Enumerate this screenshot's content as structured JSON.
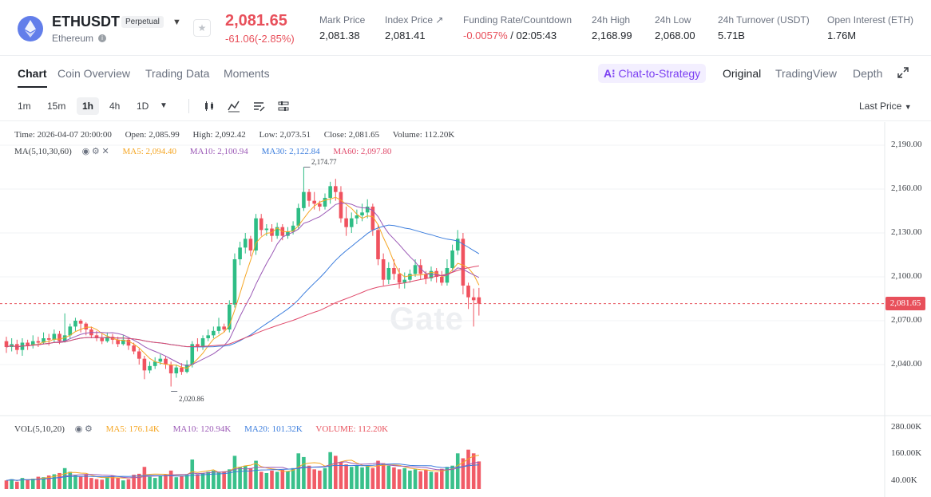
{
  "header": {
    "symbol": "ETHUSDT",
    "badge": "Perpetual",
    "coin_name": "Ethereum",
    "last_price": "2,081.65",
    "change": "-61.06(-2.85%)",
    "stats": [
      {
        "label": "Mark Price",
        "value": "2,081.38"
      },
      {
        "label": "Index Price ↗",
        "value": "2,081.41"
      },
      {
        "label": "Funding Rate/Countdown",
        "value_neg": "-0.0057%",
        "value": " / 02:05:43"
      },
      {
        "label": "24h High",
        "value": "2,168.99"
      },
      {
        "label": "24h Low",
        "value": "2,068.00"
      },
      {
        "label": "24h Turnover (USDT)",
        "value": "5.71B"
      },
      {
        "label": "Open Interest (ETH)",
        "value": "1.76M"
      }
    ]
  },
  "tabs": [
    "Chart",
    "Coin Overview",
    "Trading Data",
    "Moments"
  ],
  "strategy_label": "Chat-to-Strategy",
  "view_tabs": [
    "Original",
    "TradingView",
    "Depth"
  ],
  "intervals": [
    "1m",
    "15m",
    "1h",
    "4h",
    "1D"
  ],
  "price_source": "Last Price",
  "ohlc": {
    "time": "Time: 2026-04-07 20:00:00",
    "open": "Open: 2,085.99",
    "high": "High: 2,092.42",
    "low": "Low: 2,073.51",
    "close": "Close: 2,081.65",
    "volume": "Volume: 112.20K"
  },
  "ma_legend": {
    "title": "MA(5,10,30,60)",
    "ma5": "MA5: 2,094.40",
    "ma10": "MA10: 2,100.94",
    "ma30": "MA30: 2,122.84",
    "ma60": "MA60: 2,097.80"
  },
  "vol_legend": {
    "title": "VOL(5,10,20)",
    "ma5": "MA5: 176.14K",
    "ma10": "MA10: 120.94K",
    "ma20": "MA20: 101.32K",
    "volume": "VOLUME: 112.20K"
  },
  "annotations": {
    "high": "2,174.77",
    "low": "2,020.86"
  },
  "price_axis": [
    "2,190.00",
    "2,160.00",
    "2,130.00",
    "2,100.00",
    "2,070.00",
    "2,040.00"
  ],
  "vol_axis": [
    "280.00K",
    "160.00K",
    "40.00K"
  ],
  "current_price_tag": "2,081.65",
  "watermark": "Gate",
  "colors": {
    "up": "#2ebd85",
    "down": "#f0525f",
    "ma5": "#f5a623",
    "ma10": "#9b59b6",
    "ma30": "#3b7ddd",
    "ma60": "#e04a6b"
  },
  "chart_data": {
    "type": "candlestick",
    "ylim": [
      2020,
      2195
    ],
    "candles": [
      [
        2056,
        2052,
        2059,
        2048
      ],
      [
        2052,
        2054,
        2058,
        2049
      ],
      [
        2054,
        2050,
        2057,
        2047
      ],
      [
        2050,
        2055,
        2058,
        2046
      ],
      [
        2055,
        2053,
        2057,
        2050
      ],
      [
        2053,
        2056,
        2060,
        2051
      ],
      [
        2056,
        2055,
        2059,
        2052
      ],
      [
        2055,
        2058,
        2062,
        2054
      ],
      [
        2058,
        2057,
        2061,
        2053
      ],
      [
        2057,
        2061,
        2064,
        2055
      ],
      [
        2061,
        2056,
        2063,
        2054
      ],
      [
        2056,
        2060,
        2075,
        2055
      ],
      [
        2060,
        2066,
        2068,
        2058
      ],
      [
        2066,
        2070,
        2072,
        2063
      ],
      [
        2070,
        2068,
        2071,
        2062
      ],
      [
        2068,
        2064,
        2069,
        2060
      ],
      [
        2064,
        2060,
        2066,
        2058
      ],
      [
        2060,
        2058,
        2063,
        2056
      ],
      [
        2058,
        2056,
        2061,
        2054
      ],
      [
        2056,
        2059,
        2062,
        2055
      ],
      [
        2059,
        2057,
        2061,
        2054
      ],
      [
        2057,
        2054,
        2059,
        2052
      ],
      [
        2054,
        2057,
        2060,
        2053
      ],
      [
        2057,
        2053,
        2058,
        2050
      ],
      [
        2053,
        2049,
        2055,
        2047
      ],
      [
        2049,
        2044,
        2051,
        2040
      ],
      [
        2044,
        2036,
        2046,
        2030
      ],
      [
        2036,
        2039,
        2042,
        2034
      ],
      [
        2039,
        2042,
        2045,
        2037
      ],
      [
        2042,
        2044,
        2047,
        2040
      ],
      [
        2044,
        2040,
        2046,
        2037
      ],
      [
        2040,
        2034,
        2042,
        2025
      ],
      [
        2034,
        2038,
        2040,
        2031
      ],
      [
        2038,
        2035,
        2041,
        2033
      ],
      [
        2035,
        2040,
        2043,
        2034
      ],
      [
        2040,
        2054,
        2056,
        2038
      ],
      [
        2054,
        2052,
        2058,
        2049
      ],
      [
        2052,
        2058,
        2060,
        2050
      ],
      [
        2058,
        2060,
        2064,
        2056
      ],
      [
        2060,
        2063,
        2066,
        2058
      ],
      [
        2063,
        2066,
        2072,
        2061
      ],
      [
        2066,
        2064,
        2068,
        2062
      ],
      [
        2064,
        2081,
        2084,
        2062
      ],
      [
        2081,
        2112,
        2116,
        2079
      ],
      [
        2112,
        2120,
        2124,
        2108
      ],
      [
        2120,
        2126,
        2130,
        2116
      ],
      [
        2126,
        2118,
        2128,
        2114
      ],
      [
        2118,
        2140,
        2143,
        2115
      ],
      [
        2140,
        2132,
        2143,
        2128
      ],
      [
        2132,
        2133,
        2136,
        2128
      ],
      [
        2133,
        2128,
        2136,
        2124
      ],
      [
        2128,
        2134,
        2137,
        2126
      ],
      [
        2134,
        2128,
        2136,
        2125
      ],
      [
        2128,
        2131,
        2134,
        2126
      ],
      [
        2131,
        2135,
        2138,
        2129
      ],
      [
        2135,
        2147,
        2150,
        2133
      ],
      [
        2147,
        2158,
        2175,
        2145
      ],
      [
        2158,
        2152,
        2160,
        2148
      ],
      [
        2152,
        2150,
        2158,
        2146
      ],
      [
        2150,
        2148,
        2152,
        2145
      ],
      [
        2148,
        2154,
        2157,
        2146
      ],
      [
        2154,
        2162,
        2165,
        2150
      ],
      [
        2162,
        2158,
        2167,
        2152
      ],
      [
        2158,
        2140,
        2162,
        2137
      ],
      [
        2140,
        2134,
        2148,
        2128
      ],
      [
        2134,
        2140,
        2144,
        2130
      ],
      [
        2140,
        2142,
        2146,
        2136
      ],
      [
        2142,
        2144,
        2150,
        2138
      ],
      [
        2144,
        2148,
        2153,
        2140
      ],
      [
        2148,
        2132,
        2150,
        2128
      ],
      [
        2132,
        2112,
        2136,
        2108
      ],
      [
        2112,
        2098,
        2116,
        2094
      ],
      [
        2098,
        2106,
        2110,
        2095
      ],
      [
        2106,
        2102,
        2112,
        2098
      ],
      [
        2102,
        2096,
        2106,
        2092
      ],
      [
        2096,
        2098,
        2103,
        2092
      ],
      [
        2098,
        2102,
        2105,
        2096
      ],
      [
        2102,
        2108,
        2112,
        2100
      ],
      [
        2108,
        2102,
        2112,
        2098
      ],
      [
        2102,
        2099,
        2104,
        2095
      ],
      [
        2099,
        2104,
        2107,
        2097
      ],
      [
        2104,
        2100,
        2106,
        2096
      ],
      [
        2100,
        2096,
        2104,
        2094
      ],
      [
        2096,
        2106,
        2112,
        2094
      ],
      [
        2106,
        2118,
        2122,
        2104
      ],
      [
        2118,
        2126,
        2132,
        2115
      ],
      [
        2126,
        2094,
        2130,
        2088
      ],
      [
        2094,
        2086,
        2096,
        2078
      ],
      [
        2086,
        2084,
        2092,
        2066
      ],
      [
        2085.99,
        2081.65,
        2092.42,
        2073.51
      ]
    ],
    "volumes": [
      35,
      40,
      30,
      45,
      38,
      42,
      50,
      48,
      55,
      60,
      65,
      85,
      70,
      55,
      50,
      60,
      45,
      40,
      38,
      50,
      55,
      45,
      35,
      40,
      58,
      62,
      90,
      50,
      45,
      55,
      60,
      75,
      48,
      52,
      58,
      120,
      60,
      65,
      70,
      75,
      68,
      72,
      80,
      135,
      90,
      95,
      85,
      115,
      70,
      65,
      75,
      70,
      78,
      72,
      85,
      145,
      130,
      95,
      80,
      75,
      85,
      150,
      135,
      110,
      100,
      90,
      95,
      88,
      92,
      85,
      115,
      105,
      95,
      88,
      80,
      85,
      75,
      80,
      72,
      78,
      70,
      68,
      82,
      90,
      95,
      145,
      125,
      160,
      145,
      112.2
    ]
  }
}
